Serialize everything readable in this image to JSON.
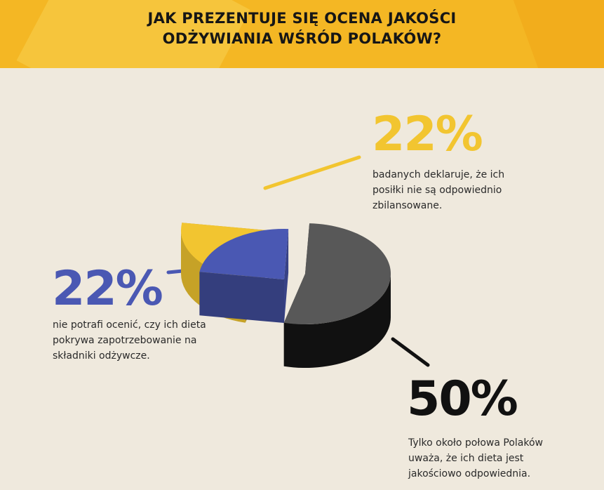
{
  "header": {
    "title_line1": "JAK PREZENTUJE SIĘ OCENA JAKOŚCI",
    "title_line2": "ODŻYWIANIA WŚRÓD POLAKÓW?"
  },
  "colors": {
    "header_bg": "#f4b724",
    "background": "#efe9dd",
    "yellow": "#f2c530",
    "blue": "#4a58b3",
    "dark": "#585858",
    "black": "#111111"
  },
  "chart_data": {
    "type": "pie",
    "slices": [
      {
        "label": "badanych deklaruje, że ich posiłki nie są odpowiednio zbilansowane.",
        "value": 22,
        "display": "22%",
        "color": "#f2c530"
      },
      {
        "label": "nie potrafi ocenić, czy ich dieta pokrywa zapotrzebowanie na składniki odżywcze.",
        "value": 22,
        "display": "22%",
        "color": "#4a58b3"
      },
      {
        "label": "Tylko około połowa Polaków uważa, że ich dieta jest jakościowo odpowiednia.",
        "value": 50,
        "display": "50%",
        "color": "#585858"
      }
    ]
  },
  "callouts": {
    "yellow": {
      "percent": "22%",
      "line1": "badanych deklaruje, że ich",
      "line2": "posiłki nie są odpowiednio",
      "line3": "zbilansowane."
    },
    "blue": {
      "percent": "22%",
      "line1": "nie potrafi ocenić, czy ich dieta",
      "line2": "pokrywa zapotrzebowanie na",
      "line3": "składniki odżywcze."
    },
    "black": {
      "percent": "50%",
      "line1": "Tylko około połowa Polaków",
      "line2": "uważa, że ich dieta jest",
      "line3": "jakościowo odpowiednia."
    }
  }
}
